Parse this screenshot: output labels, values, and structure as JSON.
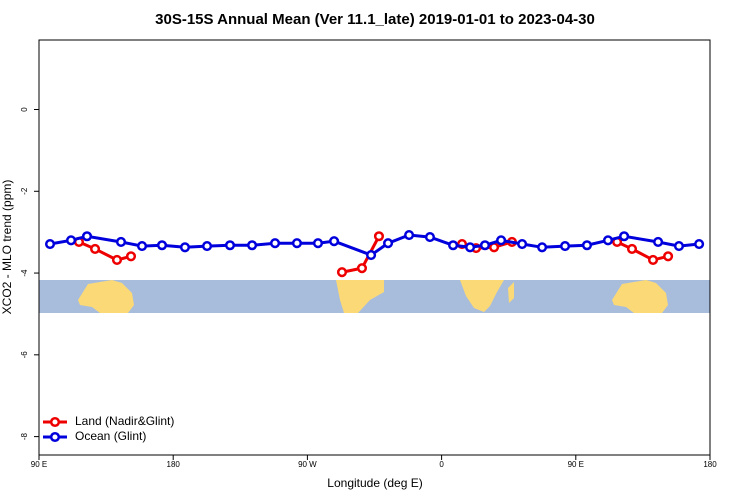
{
  "chart_data": {
    "type": "line",
    "title": "30S-15S Annual Mean (Ver 11.1_late)   2019-01-01 to 2023-04-30",
    "x_label": "Longitude (deg E)",
    "y_label": "XCO2 - MLO trend (ppm)",
    "xlim": [
      90,
      540
    ],
    "ylim": [
      -8.45,
      1.7
    ],
    "xticks": [
      {
        "value": 90,
        "label": "90 E"
      },
      {
        "value": 180,
        "label": "180"
      },
      {
        "value": 270,
        "label": "90 W"
      },
      {
        "value": 360,
        "label": "0"
      },
      {
        "value": 450,
        "label": "90 E"
      },
      {
        "value": 540,
        "label": "180"
      }
    ],
    "yticks": [
      0,
      -2,
      -4,
      -6,
      -8
    ],
    "legend": "bottom-left",
    "series": [
      {
        "name": "Land (Nadir&Glint)",
        "color": "#ee0000",
        "x": [
          116.8,
          127.6,
          142.3,
          151.7,
          null,
          293.2,
          306.6,
          318.0,
          null,
          373.7,
          383.1,
          395.2,
          407.2,
          null,
          477.7,
          487.7,
          501.8,
          511.9
        ],
        "values": [
          -3.24,
          -3.41,
          -3.68,
          -3.59,
          null,
          -3.98,
          -3.88,
          -3.1,
          null,
          -3.29,
          -3.39,
          -3.37,
          -3.24,
          null,
          -3.24,
          -3.41,
          -3.68,
          -3.59
        ]
      },
      {
        "name": "Ocean (Glint)",
        "color": "#0000dd",
        "x": [
          97.4,
          111.5,
          122.2,
          145.0,
          159.1,
          172.5,
          187.9,
          202.7,
          218.1,
          232.9,
          248.3,
          263.0,
          277.1,
          287.9,
          312.7,
          324.1,
          338.2,
          352.2,
          367.7,
          379.1,
          389.1,
          399.9,
          414.0,
          427.4,
          442.8,
          457.5,
          471.6,
          482.4,
          505.2,
          519.2,
          532.7
        ],
        "values": [
          -3.29,
          -3.2,
          -3.1,
          -3.24,
          -3.34,
          -3.32,
          -3.37,
          -3.34,
          -3.32,
          -3.32,
          -3.27,
          -3.27,
          -3.27,
          -3.22,
          -3.56,
          -3.27,
          -3.07,
          -3.12,
          -3.32,
          -3.37,
          -3.32,
          -3.2,
          -3.29,
          -3.37,
          -3.34,
          -3.32,
          -3.2,
          -3.1,
          -3.24,
          -3.34,
          -3.29
        ]
      }
    ]
  }
}
